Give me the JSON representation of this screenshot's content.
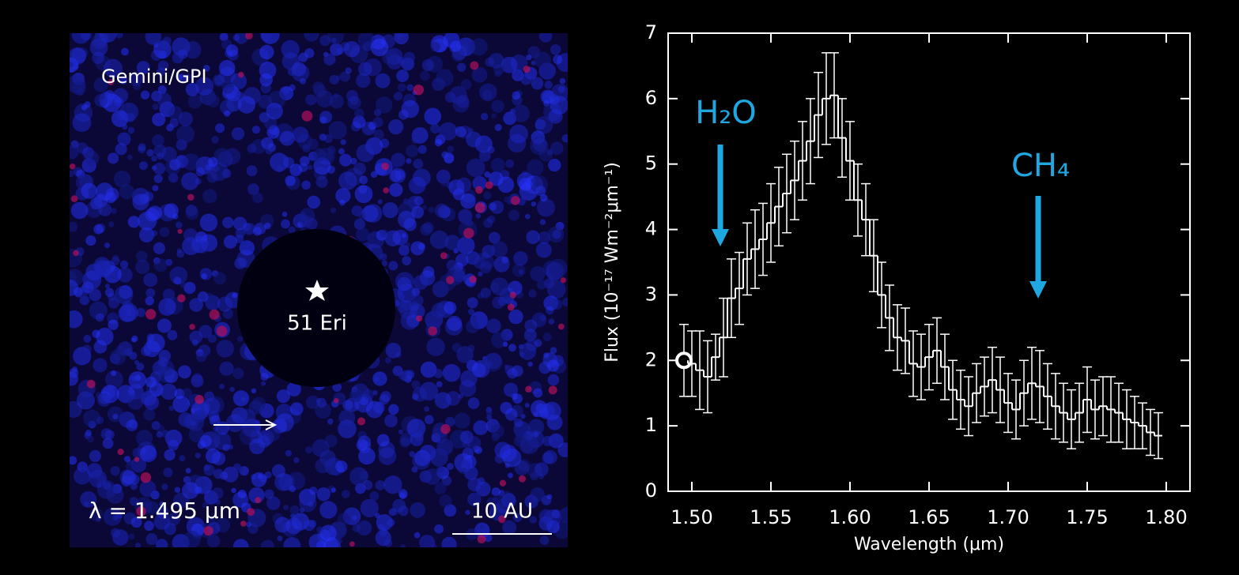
{
  "image_panel": {
    "instrument": "Gemini/GPI",
    "star": "51 Eri",
    "wavelength": "λ = 1.495 μm",
    "scale": "10 AU"
  },
  "chart_data": {
    "type": "step",
    "xlabel": "Wavelength (μm)",
    "ylabel": "Flux (10⁻¹⁷ Wm⁻²μm⁻¹)",
    "annotations": [
      "H₂O",
      "CH₄"
    ],
    "annotation_color": "#1ea7e0",
    "color": "#ffffff",
    "x": [
      1.495,
      1.5,
      1.505,
      1.51,
      1.515,
      1.52,
      1.525,
      1.53,
      1.535,
      1.54,
      1.545,
      1.55,
      1.555,
      1.56,
      1.565,
      1.57,
      1.575,
      1.58,
      1.585,
      1.59,
      1.595,
      1.6,
      1.605,
      1.61,
      1.615,
      1.62,
      1.625,
      1.63,
      1.635,
      1.64,
      1.645,
      1.65,
      1.655,
      1.66,
      1.665,
      1.67,
      1.675,
      1.68,
      1.685,
      1.69,
      1.695,
      1.7,
      1.705,
      1.71,
      1.715,
      1.72,
      1.725,
      1.73,
      1.735,
      1.74,
      1.745,
      1.75,
      1.755,
      1.76,
      1.765,
      1.77,
      1.775,
      1.78,
      1.785,
      1.79,
      1.795
    ],
    "values": [
      2.0,
      1.95,
      1.85,
      1.75,
      2.05,
      2.35,
      2.95,
      3.1,
      3.55,
      3.7,
      3.85,
      4.1,
      4.35,
      4.55,
      4.75,
      5.05,
      5.35,
      5.75,
      6.0,
      6.05,
      5.4,
      5.05,
      4.45,
      4.15,
      3.6,
      3.0,
      2.65,
      2.35,
      2.3,
      1.95,
      1.9,
      2.05,
      2.15,
      1.9,
      1.55,
      1.4,
      1.3,
      1.5,
      1.6,
      1.7,
      1.55,
      1.35,
      1.25,
      1.5,
      1.65,
      1.6,
      1.45,
      1.3,
      1.2,
      1.1,
      1.2,
      1.4,
      1.25,
      1.3,
      1.25,
      1.2,
      1.1,
      1.05,
      1.0,
      0.9,
      0.85
    ],
    "errors": [
      0.55,
      0.5,
      0.6,
      0.55,
      0.35,
      0.6,
      0.6,
      0.55,
      0.55,
      0.6,
      0.55,
      0.6,
      0.6,
      0.6,
      0.6,
      0.6,
      0.65,
      0.65,
      0.7,
      0.65,
      0.6,
      0.6,
      0.55,
      0.55,
      0.55,
      0.5,
      0.5,
      0.5,
      0.5,
      0.5,
      0.5,
      0.5,
      0.5,
      0.5,
      0.45,
      0.45,
      0.45,
      0.45,
      0.45,
      0.5,
      0.5,
      0.45,
      0.45,
      0.5,
      0.55,
      0.55,
      0.5,
      0.5,
      0.45,
      0.45,
      0.45,
      0.5,
      0.45,
      0.45,
      0.5,
      0.45,
      0.45,
      0.4,
      0.35,
      0.35,
      0.35
    ],
    "xlim": [
      1.485,
      1.815
    ],
    "ylim": [
      0,
      7
    ],
    "xticks": [
      {
        "value": 1.5,
        "label": "1.50"
      },
      {
        "value": 1.55,
        "label": "1.55"
      },
      {
        "value": 1.6,
        "label": "1.60"
      },
      {
        "value": 1.65,
        "label": "1.65"
      },
      {
        "value": 1.7,
        "label": "1.70"
      },
      {
        "value": 1.75,
        "label": "1.75"
      },
      {
        "value": 1.8,
        "label": "1.80"
      }
    ],
    "yticks": [
      0,
      1,
      2,
      3,
      4,
      5,
      6,
      7
    ]
  }
}
